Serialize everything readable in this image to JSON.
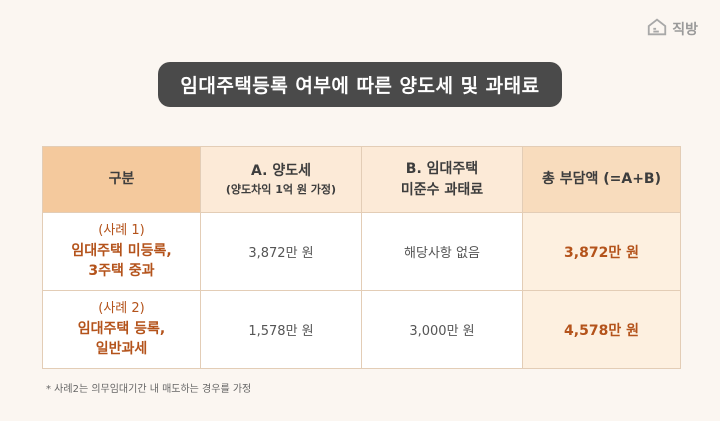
{
  "brand": {
    "name": "직방",
    "icon": "zigbang-house-icon"
  },
  "title": "임대주택등록 여부에 따른 양도세 및 과태료",
  "table": {
    "headers": [
      {
        "line1": "구분",
        "line2": ""
      },
      {
        "line1": "A. 양도세",
        "line2": "(양도차익 1억 원 가정)"
      },
      {
        "line1": "B. 임대주택",
        "line2": "미준수 과태료"
      },
      {
        "line1": "총 부담액 (=A+B)",
        "line2": ""
      }
    ],
    "rows": [
      {
        "case_num": "(사례 1)",
        "case_line1": "임대주택 미등록,",
        "case_line2": "3주택 중과",
        "a": "3,872만 원",
        "b": "해당사항 없음",
        "total": "3,872만 원"
      },
      {
        "case_num": "(사례 2)",
        "case_line1": "임대주택 등록,",
        "case_line2": "일반과세",
        "a": "1,578만 원",
        "b": "3,000만 원",
        "total": "4,578만 원"
      }
    ]
  },
  "note": "* 사례2는 의무임대기간 내 매도하는 경우를 가정",
  "colors": {
    "background": "#fbf6f1",
    "title_bg": "#4a4a4a",
    "header_first": "#f4c99d",
    "header": "#fcead7",
    "accent_text": "#b4531b",
    "total_bg": "#fdf0e0"
  }
}
